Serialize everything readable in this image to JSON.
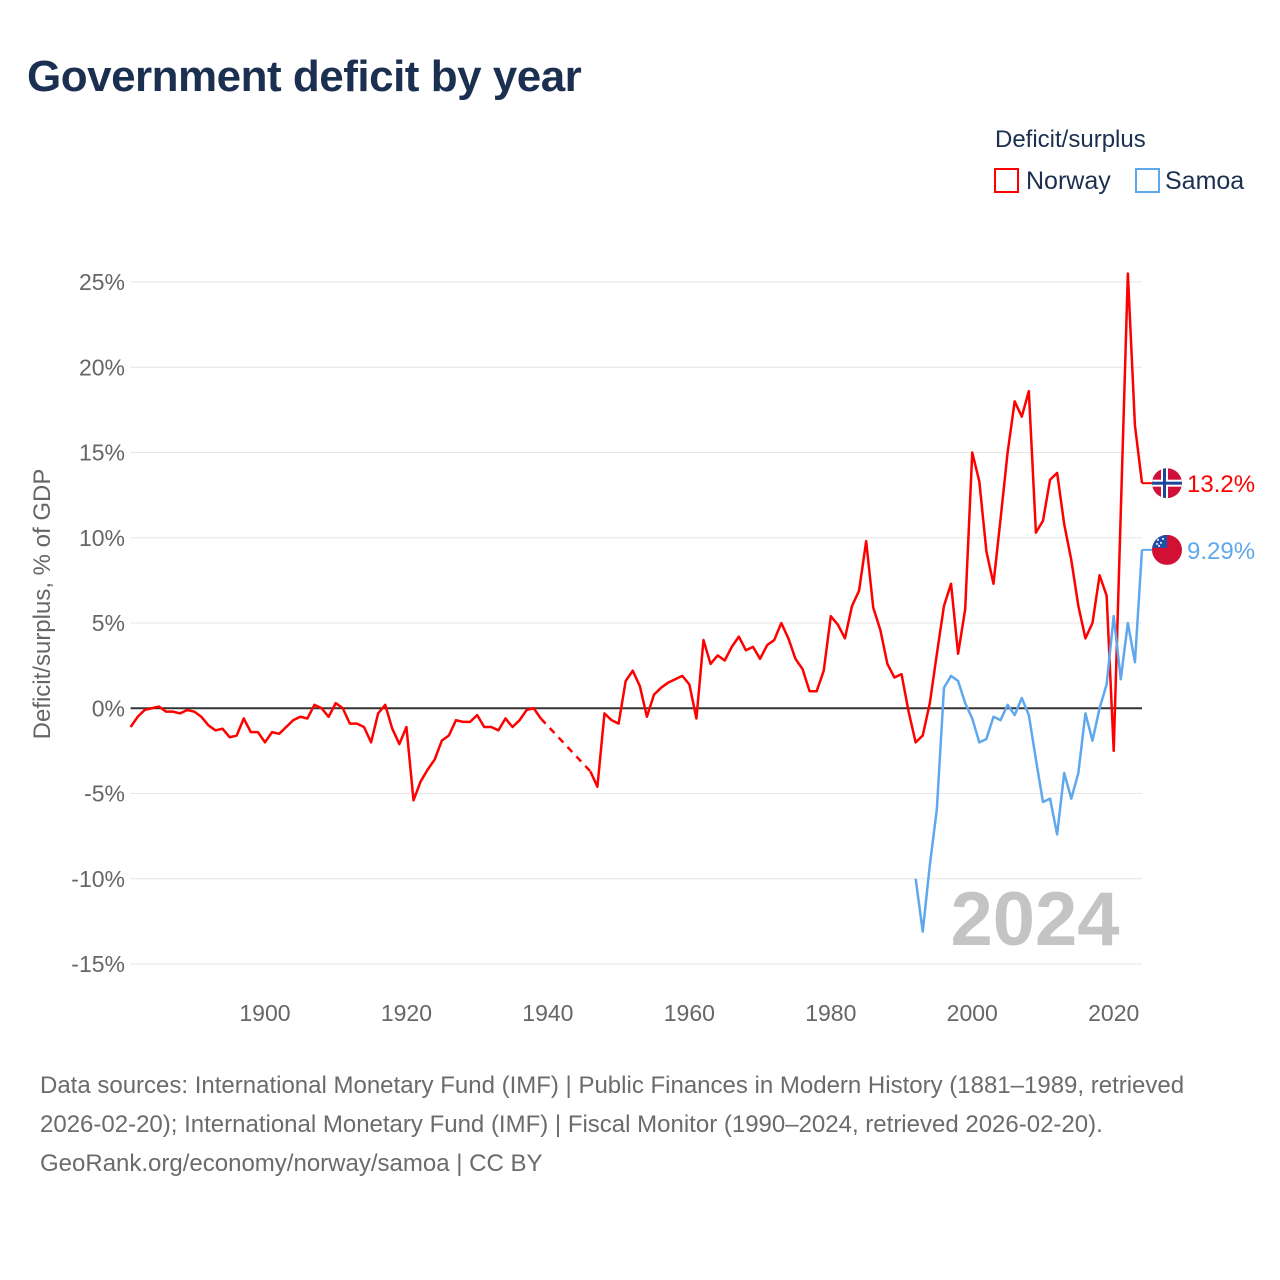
{
  "title": "Government deficit by year",
  "footer": {
    "sources": "Data sources: International Monetary Fund (IMF) | Public Finances in Modern History (1881–1989, retrieved 2026-02-20); International Monetary Fund (IMF) | Fiscal Monitor (1990–2024, retrieved 2026-02-20).",
    "credit": "GeoRank.org/economy/norway/samoa | CC BY"
  },
  "chart_data": {
    "type": "line",
    "title": "Government deficit by year",
    "xlabel": "",
    "ylabel": "Deficit/surplus, % of GDP",
    "xlim": [
      1881,
      2024
    ],
    "ylim": [
      -15,
      25
    ],
    "yticks": [
      -15,
      -10,
      -5,
      0,
      5,
      10,
      15,
      20,
      25
    ],
    "ytick_labels": [
      "-15%",
      "-10%",
      "-5%",
      "0%",
      "5%",
      "10%",
      "15%",
      "20%",
      "25%"
    ],
    "xticks": [
      1900,
      1920,
      1940,
      1960,
      1980,
      2000,
      2020
    ],
    "xtick_labels": [
      "1900",
      "1920",
      "1940",
      "1960",
      "1980",
      "2000",
      "2020"
    ],
    "grid": true,
    "legend": {
      "title": "Deficit/surplus",
      "placement": "top-right"
    },
    "year_label": "2024",
    "series": [
      {
        "name": "Norway",
        "color": "#ff0000",
        "end_label": "13.2%",
        "flag": "norway-flag",
        "start_year": 1881,
        "gap": [
          1939,
          1946
        ],
        "values": [
          -1.1,
          -0.5,
          -0.1,
          0.0,
          0.1,
          -0.2,
          -0.2,
          -0.3,
          -0.1,
          -0.2,
          -0.5,
          -1.0,
          -1.3,
          -1.2,
          -1.7,
          -1.6,
          -0.6,
          -1.4,
          -1.4,
          -2.0,
          -1.4,
          -1.5,
          -1.1,
          -0.7,
          -0.5,
          -0.6,
          0.2,
          0.0,
          -0.5,
          0.3,
          0.0,
          -0.9,
          -0.9,
          -1.1,
          -2.0,
          -0.3,
          0.2,
          -1.2,
          -2.1,
          -1.1,
          -5.4,
          -4.3,
          -3.6,
          -3.0,
          -1.9,
          -1.6,
          -0.7,
          -0.8,
          -0.8,
          -0.4,
          -1.1,
          -1.1,
          -1.3,
          -0.6,
          -1.1,
          -0.7,
          -0.1,
          0.0,
          -0.6,
          null,
          null,
          null,
          null,
          null,
          null,
          -3.7,
          -4.6,
          -0.3,
          -0.7,
          -0.9,
          1.6,
          2.2,
          1.3,
          -0.5,
          0.8,
          1.2,
          1.5,
          1.7,
          1.9,
          1.4,
          -0.6,
          4.0,
          2.6,
          3.1,
          2.8,
          3.6,
          4.2,
          3.4,
          3.6,
          2.9,
          3.7,
          4.0,
          5.0,
          4.1,
          2.9,
          2.3,
          1.0,
          1.0,
          2.2,
          5.4,
          4.9,
          4.1,
          6.0,
          6.9,
          9.8,
          5.9,
          4.6,
          2.6,
          1.8,
          2.0,
          -0.2,
          -2.0,
          -1.6,
          0.3,
          3.2,
          6.0,
          7.3,
          3.2,
          5.8,
          15.0,
          13.3,
          9.2,
          7.3,
          11.1,
          15.0,
          18.0,
          17.1,
          18.6,
          10.3,
          11.0,
          13.4,
          13.8,
          10.8,
          8.7,
          6.0,
          4.1,
          5.0,
          7.8,
          6.6,
          -2.5,
          11.5,
          25.5,
          16.6,
          13.2
        ]
      },
      {
        "name": "Samoa",
        "color": "#5fa8ee",
        "end_label": "9.29%",
        "flag": "samoa-flag",
        "start_year": 1992,
        "values": [
          -10.0,
          -13.1,
          -9.2,
          -5.9,
          1.2,
          1.9,
          1.6,
          0.3,
          -0.6,
          -2.0,
          -1.8,
          -0.5,
          -0.7,
          0.2,
          -0.4,
          0.6,
          -0.4,
          -3.0,
          -5.5,
          -5.3,
          -7.4,
          -3.8,
          -5.3,
          -3.8,
          -0.3,
          -1.9,
          0.0,
          1.4,
          5.4,
          1.7,
          5.0,
          2.7,
          9.29
        ]
      }
    ]
  }
}
